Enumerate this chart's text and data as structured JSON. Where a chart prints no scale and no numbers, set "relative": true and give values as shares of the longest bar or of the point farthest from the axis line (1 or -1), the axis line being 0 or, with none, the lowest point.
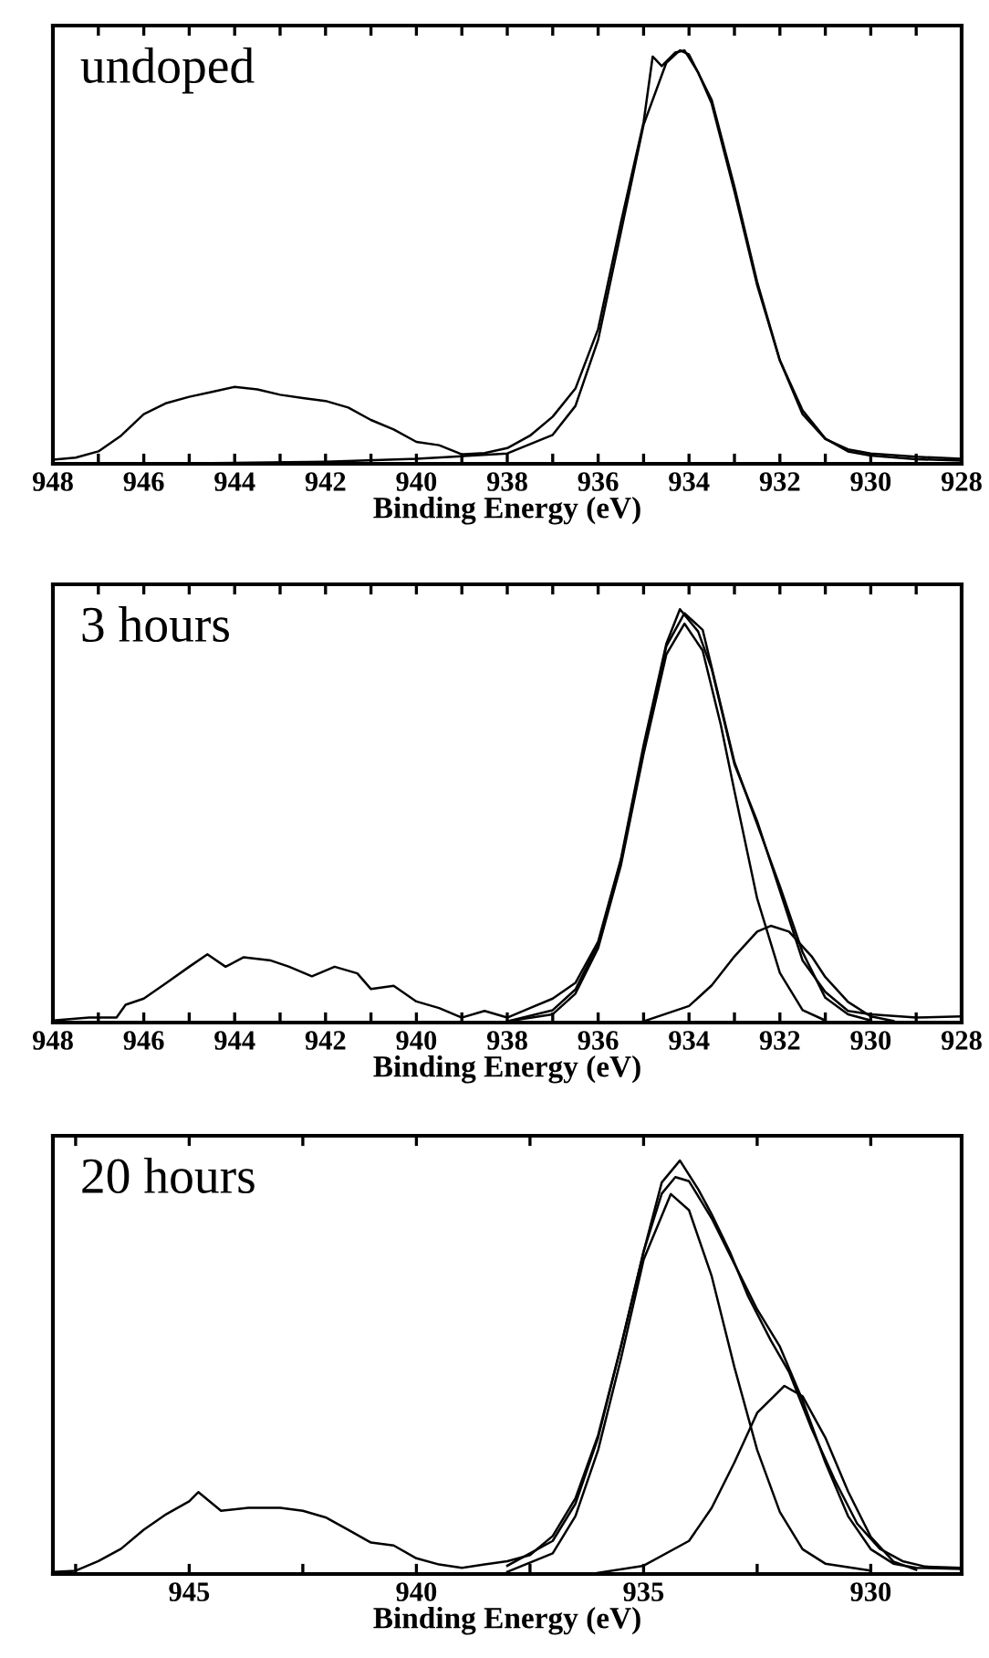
{
  "chart_data": [
    {
      "type": "line",
      "title": "undoped",
      "xlabel": "Binding Energy (eV)",
      "relative": true,
      "xlim": [
        948,
        928
      ],
      "xticks": [
        948,
        {
          "value": 947,
          "label": null
        },
        946,
        {
          "value": 945,
          "label": null
        },
        944,
        {
          "value": 943,
          "label": null
        },
        942,
        {
          "value": 941,
          "label": null
        },
        940,
        {
          "value": 939,
          "label": null
        },
        938,
        {
          "value": 937,
          "label": null
        },
        936,
        {
          "value": 935,
          "label": null
        },
        934,
        {
          "value": 933,
          "label": null
        },
        932,
        {
          "value": 931,
          "label": null
        },
        930,
        {
          "value": 929,
          "label": null
        },
        928
      ],
      "series": [
        {
          "color": "#000000",
          "x": [
            948,
            947.5,
            947,
            946.5,
            946,
            945.5,
            945,
            944.5,
            944,
            943.5,
            943,
            942.5,
            942,
            941.5,
            941,
            940.5,
            940,
            939.5,
            939,
            938.5,
            938,
            937.5,
            937,
            936.5,
            936,
            935.5,
            935,
            934.8,
            934.6,
            934.3,
            934.1,
            933.8,
            933.5,
            933,
            932.5,
            932,
            931.5,
            931,
            930.5,
            930,
            929,
            928
          ],
          "values": [
            0.01,
            0.015,
            0.03,
            0.068,
            0.12,
            0.147,
            0.162,
            0.174,
            0.186,
            0.18,
            0.167,
            0.159,
            0.152,
            0.136,
            0.106,
            0.083,
            0.053,
            0.045,
            0.023,
            0.026,
            0.038,
            0.068,
            0.114,
            0.182,
            0.326,
            0.583,
            0.826,
            0.985,
            0.962,
            0.995,
            1.0,
            0.947,
            0.871,
            0.659,
            0.432,
            0.25,
            0.129,
            0.061,
            0.03,
            0.02,
            0.011,
            0.008
          ]
        },
        {
          "color": "#000000",
          "x": [
            946,
            942,
            940,
            938,
            937,
            936.5,
            936,
            935.5,
            935,
            934.5,
            934.2,
            934,
            933.5,
            933,
            932.5,
            932,
            931.5,
            931,
            930.5,
            930,
            929,
            928
          ],
          "values": [
            0.0,
            0.005,
            0.012,
            0.025,
            0.07,
            0.14,
            0.3,
            0.56,
            0.82,
            0.97,
            1.0,
            0.99,
            0.88,
            0.67,
            0.44,
            0.25,
            0.12,
            0.06,
            0.035,
            0.025,
            0.017,
            0.012
          ]
        }
      ]
    },
    {
      "type": "line",
      "title": "3 hours",
      "xlabel": "Binding Energy (eV)",
      "relative": true,
      "xlim": [
        948,
        928
      ],
      "xticks": [
        948,
        {
          "value": 947,
          "label": null
        },
        946,
        {
          "value": 945,
          "label": null
        },
        944,
        {
          "value": 943,
          "label": null
        },
        942,
        {
          "value": 941,
          "label": null
        },
        940,
        {
          "value": 939,
          "label": null
        },
        938,
        {
          "value": 937,
          "label": null
        },
        936,
        {
          "value": 935,
          "label": null
        },
        934,
        {
          "value": 933,
          "label": null
        },
        932,
        {
          "value": 931,
          "label": null
        },
        930,
        {
          "value": 929,
          "label": null
        },
        928
      ],
      "series": [
        {
          "color": "#000000",
          "x": [
            948,
            947.2,
            946.6,
            946.4,
            946,
            945.5,
            945,
            944.6,
            944.2,
            943.8,
            943.2,
            942.8,
            942.3,
            941.8,
            941.3,
            941,
            940.5,
            940,
            939.5,
            939,
            938.5,
            938,
            937.5,
            937,
            936.5,
            936,
            935.5,
            935,
            934.5,
            934.2,
            933.8,
            933.5,
            933,
            932.5,
            932,
            931.5,
            931,
            930.5,
            930,
            929,
            928
          ],
          "values": [
            0.005,
            0.012,
            0.012,
            0.043,
            0.058,
            0.096,
            0.135,
            0.165,
            0.135,
            0.158,
            0.15,
            0.135,
            0.112,
            0.135,
            0.119,
            0.081,
            0.089,
            0.051,
            0.035,
            0.012,
            0.028,
            0.012,
            0.035,
            0.058,
            0.096,
            0.196,
            0.395,
            0.671,
            0.916,
            1.0,
            0.946,
            0.855,
            0.625,
            0.487,
            0.319,
            0.15,
            0.074,
            0.028,
            0.02,
            0.012,
            0.015
          ]
        },
        {
          "color": "#000000",
          "x": [
            938,
            937,
            936.5,
            936,
            935.5,
            935,
            934.5,
            934.1,
            933.7,
            933,
            932.5,
            932,
            931.5,
            931,
            930.5,
            930
          ],
          "values": [
            0.003,
            0.03,
            0.08,
            0.19,
            0.39,
            0.66,
            0.91,
            0.99,
            0.95,
            0.63,
            0.48,
            0.33,
            0.17,
            0.06,
            0.02,
            0.005
          ]
        },
        {
          "color": "#000000",
          "x": [
            938,
            937,
            936.5,
            936,
            935.5,
            935,
            934.5,
            934.1,
            933.7,
            933.3,
            933,
            932.5,
            932,
            931.5,
            931
          ],
          "values": [
            0.003,
            0.02,
            0.07,
            0.18,
            0.38,
            0.65,
            0.89,
            0.965,
            0.9,
            0.72,
            0.56,
            0.3,
            0.12,
            0.03,
            0.005
          ]
        },
        {
          "color": "#000000",
          "x": [
            935,
            934,
            933.5,
            933,
            932.5,
            932.2,
            931.8,
            931.3,
            931,
            930.5,
            930,
            929.5
          ],
          "values": [
            0.003,
            0.04,
            0.09,
            0.16,
            0.22,
            0.234,
            0.22,
            0.16,
            0.11,
            0.05,
            0.015,
            0.004
          ]
        }
      ]
    },
    {
      "type": "line",
      "title": "20 hours",
      "xlabel": "Binding Energy (eV)",
      "relative": true,
      "xlim": [
        948,
        928
      ],
      "xticks": [
        {
          "value": 947.5,
          "label": null
        },
        945,
        {
          "value": 942.5,
          "label": null
        },
        940,
        {
          "value": 937.5,
          "label": null
        },
        935,
        {
          "value": 932.5,
          "label": null
        },
        930
      ],
      "series": [
        {
          "color": "#000000",
          "x": [
            948,
            947.5,
            947,
            946.5,
            946,
            945.5,
            945,
            944.8,
            944.3,
            943.7,
            943,
            942.5,
            942,
            941.5,
            941,
            940.5,
            940,
            939.5,
            939,
            938.5,
            938,
            937.5,
            937,
            936.5,
            936,
            935.5,
            935,
            934.6,
            934.2,
            933.8,
            933.5,
            933.1,
            932.7,
            932.2,
            931.8,
            931.3,
            930.8,
            930.3,
            929.8,
            929.3,
            928.8,
            928
          ],
          "values": [
            0.005,
            0.008,
            0.031,
            0.061,
            0.107,
            0.145,
            0.176,
            0.198,
            0.153,
            0.16,
            0.16,
            0.153,
            0.137,
            0.107,
            0.076,
            0.069,
            0.038,
            0.023,
            0.015,
            0.023,
            0.031,
            0.046,
            0.092,
            0.183,
            0.336,
            0.55,
            0.779,
            0.947,
            1.0,
            0.931,
            0.87,
            0.779,
            0.672,
            0.565,
            0.489,
            0.351,
            0.229,
            0.122,
            0.061,
            0.031,
            0.018,
            0.015
          ]
        },
        {
          "color": "#000000",
          "x": [
            938,
            937,
            936.5,
            936,
            935.5,
            935,
            934.6,
            934.3,
            934,
            933.5,
            933,
            932.5,
            932,
            931.5,
            931,
            930.5,
            930,
            929.5,
            929,
            928
          ],
          "values": [
            0.02,
            0.08,
            0.17,
            0.33,
            0.55,
            0.78,
            0.92,
            0.96,
            0.95,
            0.86,
            0.75,
            0.64,
            0.55,
            0.42,
            0.27,
            0.14,
            0.06,
            0.025,
            0.015,
            0.012
          ]
        },
        {
          "color": "#000000",
          "x": [
            938,
            937,
            936.5,
            936,
            935.5,
            935,
            934.4,
            934,
            933.5,
            933,
            932.5,
            932,
            931.5,
            931,
            930
          ],
          "values": [
            0.005,
            0.05,
            0.14,
            0.3,
            0.52,
            0.76,
            0.919,
            0.88,
            0.72,
            0.5,
            0.3,
            0.15,
            0.06,
            0.025,
            0.008
          ]
        },
        {
          "color": "#000000",
          "x": [
            936,
            935,
            934,
            933.5,
            933,
            932.5,
            931.9,
            931.5,
            931,
            930.5,
            930,
            929.5,
            929
          ],
          "values": [
            0.003,
            0.02,
            0.08,
            0.16,
            0.27,
            0.39,
            0.455,
            0.43,
            0.33,
            0.2,
            0.09,
            0.03,
            0.01
          ]
        }
      ]
    }
  ]
}
